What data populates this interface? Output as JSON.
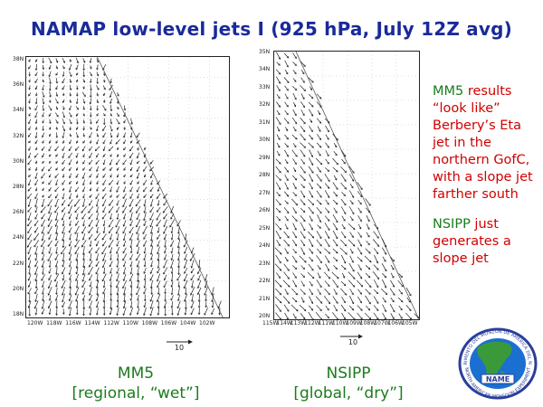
{
  "title": "NAMAP low-level jets I  (925 hPa, July 12Z avg)",
  "left_panel": {
    "lat_labels": [
      "38N",
      "36N",
      "34N",
      "32N",
      "30N",
      "28N",
      "26N",
      "24N",
      "22N",
      "20N",
      "18N"
    ],
    "lon_labels": [
      "120W",
      "118W",
      "116W",
      "114W",
      "112W",
      "110W",
      "108W",
      "106W",
      "104W",
      "102W"
    ],
    "ref_vector_label": "10",
    "caption_name": "MM5",
    "caption_desc": "[regional, “wet”]"
  },
  "right_panel": {
    "lat_labels": [
      "35N",
      "34N",
      "33N",
      "32N",
      "31N",
      "30N",
      "29N",
      "28N",
      "27N",
      "26N",
      "25N",
      "24N",
      "23N",
      "22N",
      "21N",
      "20N"
    ],
    "lon_labels": [
      "115W",
      "114W",
      "113W",
      "112W",
      "111W",
      "110W",
      "109W",
      "108W",
      "107W",
      "106W",
      "105W"
    ],
    "ref_vector_label": "10",
    "caption_name": "NSIPP",
    "caption_desc": "[global, “dry”]"
  },
  "notes": {
    "p1_lead": "MM5",
    "p1_rest": " results “look like” Berbery’s Eta jet in the northern GofC, with a slope jet farther south",
    "p2_lead": "NSIPP",
    "p2_rest": " just generates a slope jet"
  },
  "logo": {
    "top_text": "EXPERIMENTO DEL MONZON DE AMERICA DEL NORTE",
    "bottom_text": "NORTH AMERICAN MONSOON EXPERIMENT",
    "badge": "NAME",
    "colors": {
      "ring": "#2a3f9a",
      "land": "#3a9a3a",
      "sea": "#1b6fd0"
    }
  }
}
